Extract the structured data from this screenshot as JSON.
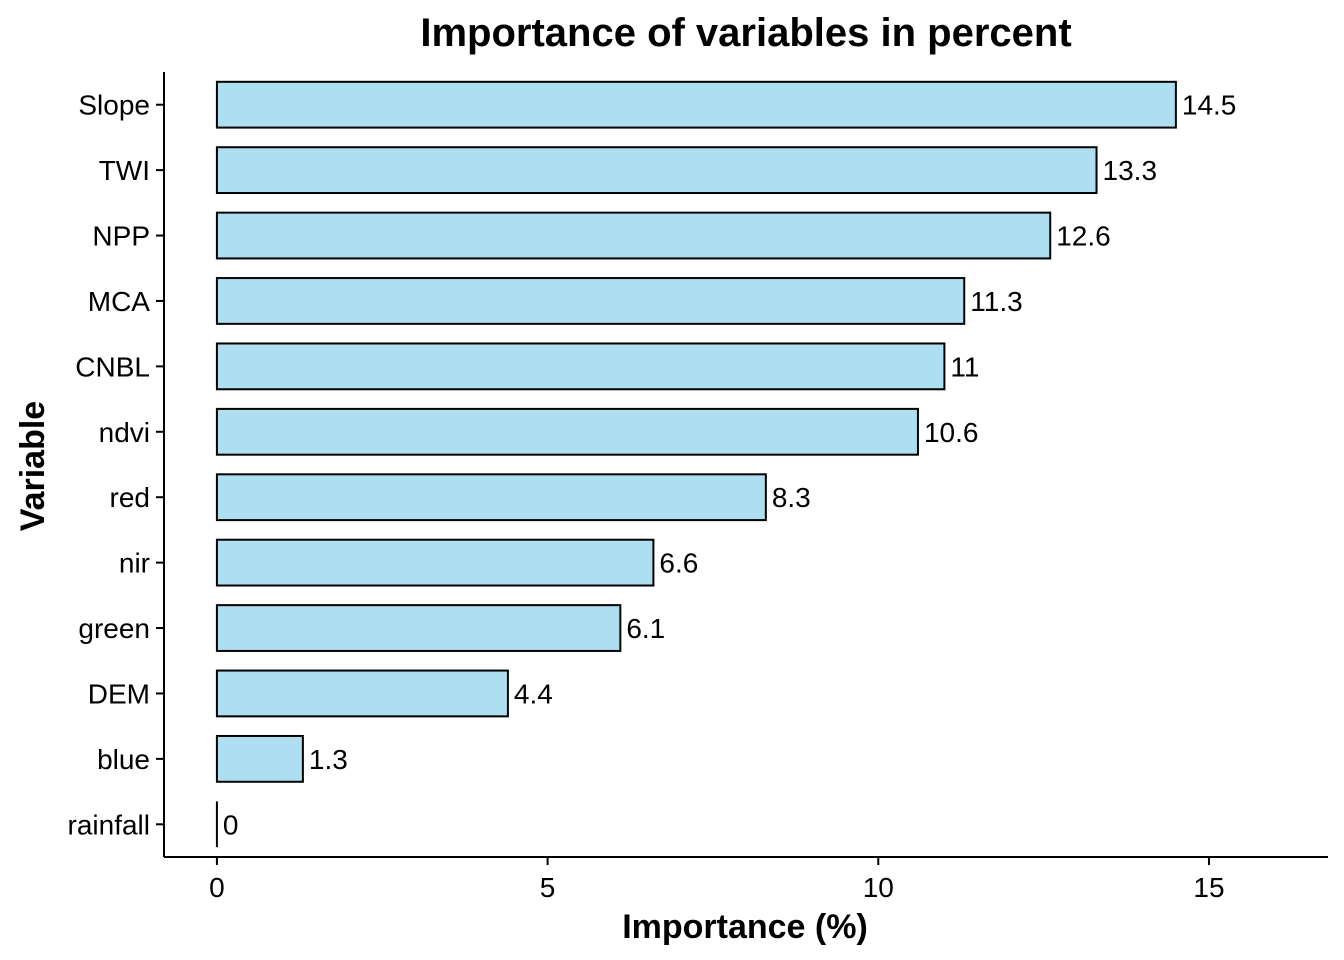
{
  "chart_data": {
    "type": "bar",
    "orientation": "horizontal",
    "title": "Importance of variables in percent",
    "xlabel": "Importance (%)",
    "ylabel": "Variable",
    "categories": [
      "Slope",
      "TWI",
      "NPP",
      "MCA",
      "CNBL",
      "ndvi",
      "red",
      "nir",
      "green",
      "DEM",
      "blue",
      "rainfall"
    ],
    "values": [
      14.5,
      13.3,
      12.6,
      11.3,
      11,
      10.6,
      8.3,
      6.6,
      6.1,
      4.4,
      1.3,
      0
    ],
    "value_labels": [
      "14.5",
      "13.3",
      "12.6",
      "11.3",
      "11",
      "10.6",
      "8.3",
      "6.6",
      "6.1",
      "4.4",
      "1.3",
      "0"
    ],
    "xlim": [
      -0.8,
      16.8
    ],
    "xticks": [
      0,
      5,
      10,
      15
    ],
    "xtick_labels": [
      "0",
      "5",
      "10",
      "15"
    ],
    "grid": false,
    "legend": "none",
    "bar_fill": "#ADDFF0",
    "bar_stroke": "#000000"
  }
}
